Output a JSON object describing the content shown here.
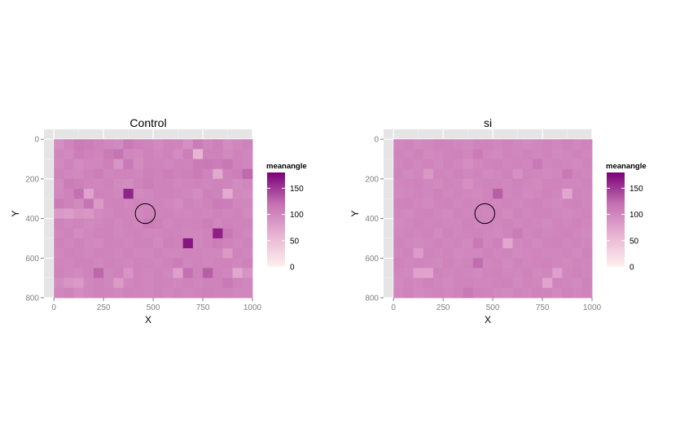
{
  "chart_data": [
    {
      "type": "heatmap",
      "title": "Control",
      "xlabel": "X",
      "ylabel": "Y",
      "xlim": [
        -50,
        1000
      ],
      "ylim": [
        800,
        -50
      ],
      "xticks": [
        0,
        250,
        500,
        750,
        1000
      ],
      "yticks": [
        0,
        200,
        400,
        600,
        800
      ],
      "grid": true,
      "legend": {
        "title": "meanangle",
        "ticks": [
          0,
          50,
          100,
          150
        ],
        "range": [
          0,
          180
        ],
        "colors": [
          "#fdf0ec",
          "#e8b4d4",
          "#c471b1",
          "#7a0177"
        ],
        "placement": "right"
      },
      "grid_x0": 0,
      "grid_y0": 0,
      "cell_w": 50,
      "cell_h": 50,
      "marker": {
        "shape": "circle",
        "x": 460,
        "y": 375,
        "r": 50
      },
      "values": [
        [
          95,
          102,
          110,
          108,
          104,
          100,
          98,
          112,
          106,
          102,
          98,
          104,
          102,
          92,
          110,
          100,
          106,
          96,
          100,
          104
        ],
        [
          100,
          98,
          108,
          104,
          102,
          110,
          116,
          100,
          98,
          104,
          100,
          104,
          96,
          108,
          60,
          104,
          104,
          98,
          104,
          100
        ],
        [
          98,
          104,
          96,
          100,
          100,
          106,
          88,
          112,
          96,
          104,
          102,
          100,
          104,
          102,
          110,
          112,
          108,
          114,
          104,
          100
        ],
        [
          104,
          100,
          98,
          104,
          108,
          100,
          102,
          104,
          100,
          106,
          104,
          108,
          104,
          106,
          110,
          104,
          70,
          104,
          108,
          124
        ],
        [
          98,
          110,
          106,
          102,
          100,
          104,
          98,
          96,
          104,
          108,
          104,
          104,
          100,
          102,
          104,
          100,
          104,
          102,
          96,
          100
        ],
        [
          100,
          104,
          120,
          76,
          104,
          102,
          100,
          162,
          98,
          100,
          104,
          104,
          102,
          100,
          96,
          106,
          104,
          68,
          98,
          96
        ],
        [
          110,
          104,
          98,
          116,
          84,
          102,
          104,
          100,
          104,
          100,
          102,
          100,
          96,
          104,
          100,
          104,
          110,
          108,
          100,
          100
        ],
        [
          84,
          80,
          90,
          86,
          98,
          100,
          104,
          102,
          100,
          104,
          102,
          104,
          100,
          100,
          102,
          100,
          104,
          100,
          104,
          98
        ],
        [
          104,
          100,
          102,
          98,
          100,
          104,
          100,
          104,
          100,
          110,
          106,
          100,
          104,
          102,
          104,
          108,
          100,
          104,
          102,
          104
        ],
        [
          100,
          104,
          96,
          100,
          104,
          104,
          100,
          102,
          104,
          100,
          100,
          104,
          102,
          100,
          100,
          104,
          164,
          112,
          104,
          100
        ],
        [
          104,
          100,
          104,
          100,
          98,
          104,
          102,
          100,
          104,
          104,
          98,
          106,
          104,
          170,
          100,
          104,
          108,
          104,
          100,
          104
        ],
        [
          100,
          104,
          102,
          100,
          104,
          102,
          100,
          104,
          100,
          100,
          104,
          100,
          100,
          104,
          102,
          100,
          100,
          84,
          104,
          100
        ],
        [
          102,
          100,
          104,
          104,
          100,
          104,
          102,
          100,
          104,
          102,
          100,
          104,
          108,
          100,
          104,
          100,
          102,
          104,
          100,
          104
        ],
        [
          104,
          100,
          98,
          104,
          126,
          100,
          104,
          88,
          104,
          100,
          104,
          100,
          78,
          120,
          104,
          130,
          104,
          100,
          72,
          90
        ],
        [
          96,
          88,
          84,
          100,
          104,
          100,
          82,
          100,
          104,
          100,
          104,
          102,
          100,
          104,
          100,
          104,
          104,
          112,
          104,
          100
        ],
        [
          100,
          104,
          96,
          100,
          104,
          102,
          100,
          104,
          102,
          100,
          104,
          100,
          104,
          100,
          104,
          106,
          104,
          104,
          100,
          100
        ]
      ]
    },
    {
      "type": "heatmap",
      "title": "si",
      "xlabel": "X",
      "ylabel": "Y",
      "xlim": [
        -50,
        1000
      ],
      "ylim": [
        800,
        -50
      ],
      "xticks": [
        0,
        250,
        500,
        750,
        1000
      ],
      "yticks": [
        0,
        200,
        400,
        600,
        800
      ],
      "grid": true,
      "legend": {
        "title": "meanangle",
        "ticks": [
          0,
          50,
          100,
          150
        ],
        "range": [
          0,
          180
        ],
        "colors": [
          "#fdf0ec",
          "#e8b4d4",
          "#c471b1",
          "#7a0177"
        ],
        "placement": "right"
      },
      "grid_x0": 0,
      "grid_y0": 0,
      "cell_w": 50,
      "cell_h": 50,
      "marker": {
        "shape": "circle",
        "x": 460,
        "y": 375,
        "r": 50
      },
      "values": [
        [
          100,
          102,
          98,
          100,
          104,
          102,
          100,
          98,
          102,
          104,
          100,
          102,
          100,
          98,
          100,
          102,
          100,
          104,
          100,
          102
        ],
        [
          102,
          100,
          104,
          98,
          100,
          102,
          104,
          100,
          110,
          100,
          98,
          102,
          100,
          104,
          100,
          102,
          98,
          100,
          104,
          100
        ],
        [
          100,
          104,
          100,
          102,
          98,
          104,
          100,
          94,
          100,
          102,
          104,
          100,
          102,
          100,
          112,
          100,
          102,
          100,
          98,
          102
        ],
        [
          102,
          98,
          100,
          86,
          102,
          100,
          104,
          100,
          102,
          98,
          100,
          104,
          92,
          102,
          100,
          98,
          100,
          112,
          102,
          100
        ],
        [
          100,
          102,
          104,
          100,
          98,
          102,
          100,
          92,
          100,
          104,
          102,
          100,
          104,
          100,
          98,
          102,
          104,
          100,
          100,
          102
        ],
        [
          98,
          100,
          102,
          100,
          104,
          100,
          102,
          100,
          98,
          102,
          130,
          100,
          102,
          98,
          100,
          104,
          100,
          72,
          102,
          100
        ],
        [
          102,
          104,
          100,
          98,
          102,
          104,
          100,
          102,
          100,
          104,
          100,
          102,
          100,
          102,
          104,
          100,
          98,
          102,
          104,
          100
        ],
        [
          100,
          98,
          102,
          104,
          100,
          98,
          104,
          100,
          102,
          100,
          102,
          98,
          104,
          100,
          102,
          104,
          100,
          98,
          100,
          102
        ],
        [
          98,
          100,
          104,
          100,
          102,
          100,
          100,
          104,
          100,
          102,
          100,
          104,
          100,
          102,
          100,
          98,
          102,
          100,
          104,
          100
        ],
        [
          100,
          102,
          100,
          102,
          98,
          104,
          100,
          102,
          104,
          100,
          98,
          102,
          110,
          100,
          104,
          100,
          102,
          104,
          100,
          98
        ],
        [
          102,
          100,
          98,
          100,
          104,
          100,
          102,
          98,
          112,
          100,
          106,
          72,
          100,
          102,
          98,
          102,
          104,
          100,
          102,
          100
        ],
        [
          100,
          104,
          82,
          102,
          100,
          102,
          98,
          100,
          100,
          104,
          100,
          102,
          98,
          100,
          102,
          100,
          100,
          102,
          98,
          104
        ],
        [
          104,
          100,
          102,
          100,
          98,
          104,
          100,
          102,
          122,
          100,
          102,
          98,
          104,
          100,
          102,
          104,
          100,
          98,
          102,
          100
        ],
        [
          100,
          98,
          76,
          74,
          104,
          100,
          102,
          100,
          98,
          102,
          104,
          100,
          100,
          104,
          98,
          100,
          78,
          100,
          104,
          100
        ],
        [
          98,
          102,
          100,
          104,
          100,
          98,
          102,
          104,
          100,
          100,
          102,
          104,
          98,
          102,
          100,
          74,
          102,
          100,
          98,
          104
        ],
        [
          100,
          104,
          98,
          100,
          102,
          100,
          104,
          112,
          104,
          102,
          100,
          98,
          102,
          100,
          104,
          102,
          98,
          104,
          100,
          102
        ]
      ]
    }
  ]
}
